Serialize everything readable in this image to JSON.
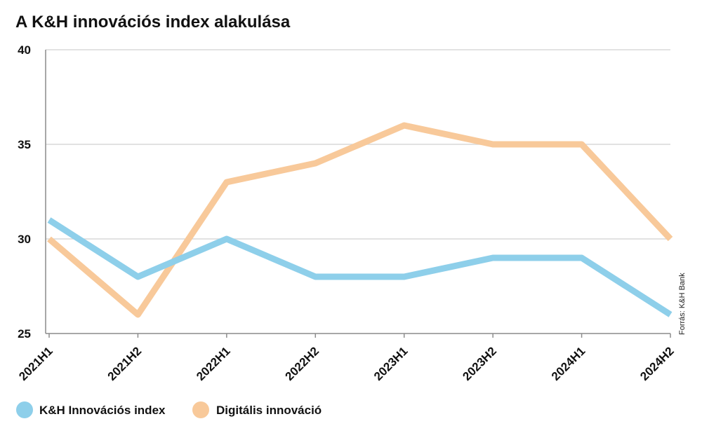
{
  "chart_data": {
    "type": "line",
    "title": "A K&H innovációs index alakulása",
    "xlabel": "",
    "ylabel": "",
    "categories": [
      "2021H1",
      "2021H2",
      "2022H1",
      "2022H2",
      "2023H1",
      "2023H2",
      "2024H1",
      "2024H2"
    ],
    "series": [
      {
        "name": "K&H Innovációs index",
        "color": "#8ecfea",
        "values": [
          31,
          28,
          30,
          28,
          28,
          29,
          29,
          26
        ]
      },
      {
        "name": "Digitális innováció",
        "color": "#f8c99a",
        "values": [
          30,
          26,
          33,
          34,
          36,
          35,
          35,
          30
        ]
      }
    ],
    "ylim": [
      25,
      40
    ],
    "yticks": [
      25,
      30,
      35,
      40
    ],
    "grid": true,
    "legend_position": "bottom-left",
    "source": "Forrás: K&H Bank"
  }
}
